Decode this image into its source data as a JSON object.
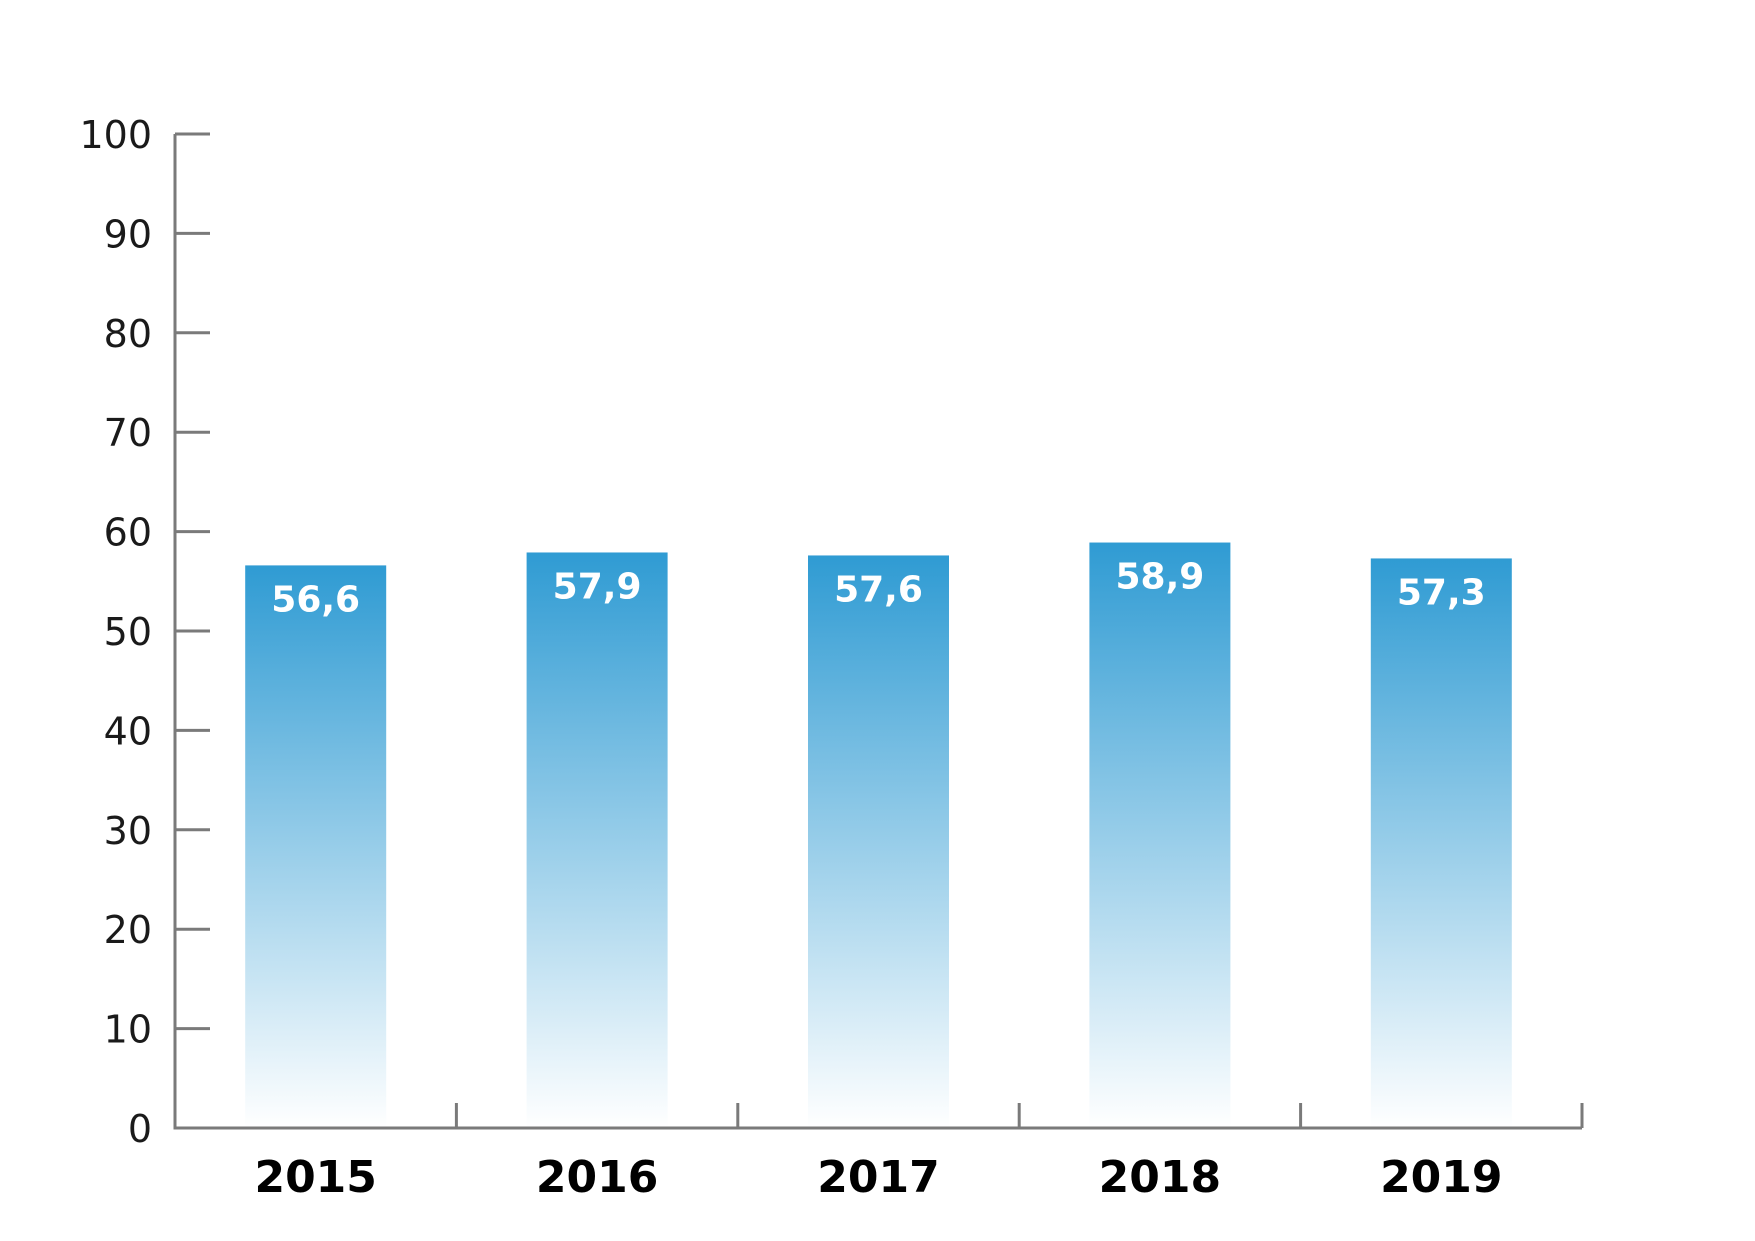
{
  "chart_data": {
    "type": "bar",
    "categories": [
      "2015",
      "2016",
      "2017",
      "2018",
      "2019"
    ],
    "values": [
      56.6,
      57.9,
      57.6,
      58.9,
      57.3
    ],
    "data_labels": [
      "56,6",
      "57,9",
      "57,6",
      "58,9",
      "57,3"
    ],
    "y_ticks": [
      "0",
      "10",
      "20",
      "30",
      "40",
      "50",
      "60",
      "70",
      "80",
      "90",
      "100"
    ],
    "ylim": [
      0,
      100
    ],
    "title": "",
    "xlabel": "",
    "ylabel": "",
    "grid": false,
    "colors": {
      "bar_top": "#2f9bd3",
      "bar_bottom": "#ffffff",
      "axis": "#7a7a7a"
    }
  }
}
